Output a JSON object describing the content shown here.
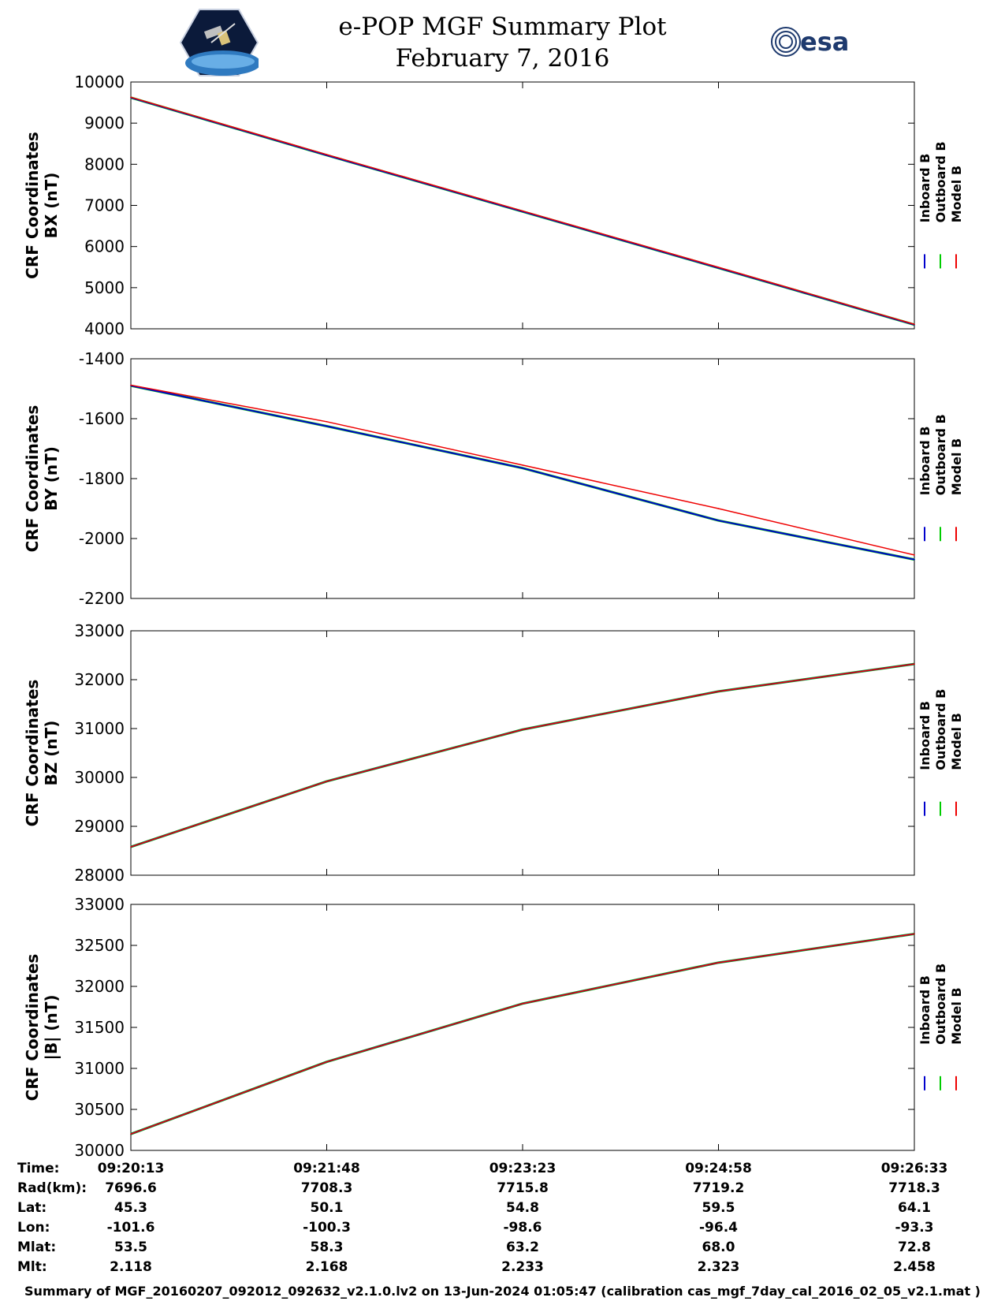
{
  "header": {
    "title_line1": "e-POP MGF Summary Plot",
    "title_line2": "February 7, 2016",
    "logo_left": "cassiope-logo",
    "logo_right": "esa-logo",
    "logo_right_text": "esa"
  },
  "colors": {
    "inboard": "#0000cc",
    "outboard": "#00cc00",
    "model": "#ee0000"
  },
  "legend": [
    "Inboard B",
    "Outboard B",
    "Model B"
  ],
  "chart_data": [
    {
      "type": "line",
      "ylabel_line1": "CRF Coordinates",
      "ylabel_line2": "BX (nT)",
      "ylim": [
        4000,
        10000
      ],
      "yticks": [
        4000,
        5000,
        6000,
        7000,
        8000,
        9000,
        10000
      ],
      "x": [
        "09:20:13",
        "09:21:48",
        "09:23:23",
        "09:24:58",
        "09:26:33"
      ],
      "series": [
        {
          "name": "Inboard B",
          "values": [
            9620,
            8220,
            6850,
            5480,
            4100
          ]
        },
        {
          "name": "Outboard B",
          "values": [
            9620,
            8220,
            6850,
            5480,
            4100
          ]
        },
        {
          "name": "Model B",
          "values": [
            9630,
            8235,
            6865,
            5495,
            4110
          ]
        }
      ]
    },
    {
      "type": "line",
      "ylabel_line1": "CRF Coordinates",
      "ylabel_line2": "BY (nT)",
      "ylim": [
        -2200,
        -1400
      ],
      "yticks": [
        -2200,
        -2000,
        -1800,
        -1600,
        -1400
      ],
      "x": [
        "09:20:13",
        "09:21:48",
        "09:23:23",
        "09:24:58",
        "09:26:33"
      ],
      "series": [
        {
          "name": "Inboard B",
          "values": [
            -1490,
            -1625,
            -1765,
            -1940,
            -2070
          ]
        },
        {
          "name": "Outboard B",
          "values": [
            -1490,
            -1625,
            -1765,
            -1940,
            -2070
          ]
        },
        {
          "name": "Model B",
          "values": [
            -1488,
            -1610,
            -1755,
            -1900,
            -2055
          ]
        }
      ]
    },
    {
      "type": "line",
      "ylabel_line1": "CRF Coordinates",
      "ylabel_line2": "BZ (nT)",
      "ylim": [
        28000,
        33000
      ],
      "yticks": [
        28000,
        29000,
        30000,
        31000,
        32000,
        33000
      ],
      "x": [
        "09:20:13",
        "09:21:48",
        "09:23:23",
        "09:24:58",
        "09:26:33"
      ],
      "series": [
        {
          "name": "Inboard B",
          "values": [
            28580,
            29920,
            30980,
            31760,
            32320
          ]
        },
        {
          "name": "Outboard B",
          "values": [
            28580,
            29920,
            30980,
            31760,
            32320
          ]
        },
        {
          "name": "Model B",
          "values": [
            28580,
            29920,
            30980,
            31760,
            32320
          ]
        }
      ]
    },
    {
      "type": "line",
      "ylabel_line1": "CRF Coordinates",
      "ylabel_line2": "|B| (nT)",
      "ylim": [
        30000,
        33000
      ],
      "yticks": [
        30000,
        30500,
        31000,
        31500,
        32000,
        32500,
        33000
      ],
      "x": [
        "09:20:13",
        "09:21:48",
        "09:23:23",
        "09:24:58",
        "09:26:33"
      ],
      "series": [
        {
          "name": "Inboard B",
          "values": [
            30200,
            31080,
            31790,
            32290,
            32640
          ]
        },
        {
          "name": "Outboard B",
          "values": [
            30200,
            31080,
            31790,
            32290,
            32640
          ]
        },
        {
          "name": "Model B",
          "values": [
            30200,
            31080,
            31790,
            32290,
            32640
          ]
        }
      ]
    }
  ],
  "orbit_table": {
    "rows": [
      {
        "label": "Time:",
        "values": [
          "09:20:13",
          "09:21:48",
          "09:23:23",
          "09:24:58",
          "09:26:33"
        ]
      },
      {
        "label": "Rad(km):",
        "values": [
          "7696.6",
          "7708.3",
          "7715.8",
          "7719.2",
          "7718.3"
        ]
      },
      {
        "label": "Lat:",
        "values": [
          "45.3",
          "50.1",
          "54.8",
          "59.5",
          "64.1"
        ]
      },
      {
        "label": "Lon:",
        "values": [
          "-101.6",
          "-100.3",
          "-98.6",
          "-96.4",
          "-93.3"
        ]
      },
      {
        "label": "Mlat:",
        "values": [
          "53.5",
          "58.3",
          "63.2",
          "68.0",
          "72.8"
        ]
      },
      {
        "label": "Mlt:",
        "values": [
          "2.118",
          "2.168",
          "2.233",
          "2.323",
          "2.458"
        ]
      }
    ]
  },
  "footer": {
    "text": "Summary of MGF_20160207_092012_092632_v2.1.0.lv2 on 13-Jun-2024 01:05:47 (calibration cas_mgf_7day_cal_2016_02_05_v2.1.mat )"
  }
}
